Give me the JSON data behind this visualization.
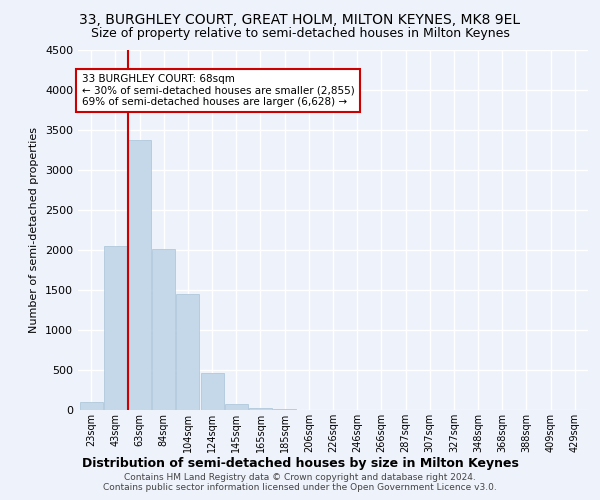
{
  "title": "33, BURGHLEY COURT, GREAT HOLM, MILTON KEYNES, MK8 9EL",
  "subtitle": "Size of property relative to semi-detached houses in Milton Keynes",
  "xlabel": "Distribution of semi-detached houses by size in Milton Keynes",
  "ylabel": "Number of semi-detached properties",
  "footer_line1": "Contains HM Land Registry data © Crown copyright and database right 2024.",
  "footer_line2": "Contains public sector information licensed under the Open Government Licence v3.0.",
  "categories": [
    "23sqm",
    "43sqm",
    "63sqm",
    "84sqm",
    "104sqm",
    "124sqm",
    "145sqm",
    "165sqm",
    "185sqm",
    "206sqm",
    "226sqm",
    "246sqm",
    "266sqm",
    "287sqm",
    "307sqm",
    "327sqm",
    "348sqm",
    "368sqm",
    "388sqm",
    "409sqm",
    "429sqm"
  ],
  "values": [
    100,
    2050,
    3380,
    2010,
    1450,
    460,
    80,
    30,
    10,
    5,
    2,
    1,
    1,
    0,
    0,
    0,
    0,
    0,
    0,
    0,
    0
  ],
  "bar_color": "#c5d8ea",
  "bar_edge_color": "#a8c4d8",
  "annotation_title": "33 BURGHLEY COURT: 68sqm",
  "annotation_line1": "← 30% of semi-detached houses are smaller (2,855)",
  "annotation_line2": "69% of semi-detached houses are larger (6,628) →",
  "annotation_box_color": "#ffffff",
  "annotation_box_edge": "#cc0000",
  "red_line_x": 2,
  "ylim": [
    0,
    4500
  ],
  "background_color": "#eef2fa",
  "grid_color": "#ffffff",
  "title_fontsize": 10,
  "subtitle_fontsize": 9
}
